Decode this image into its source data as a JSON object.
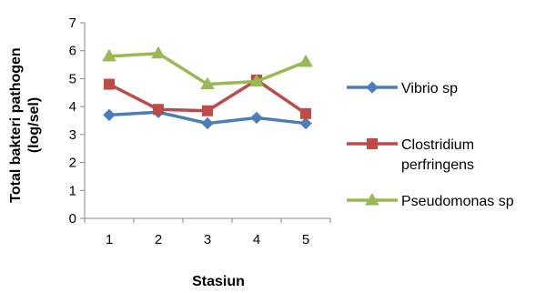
{
  "chart_data": {
    "type": "line",
    "x": [
      1,
      2,
      3,
      4,
      5
    ],
    "xlabel": "Stasiun",
    "ylabel": [
      "Total bakteri pathogen",
      "(log/sel)"
    ],
    "ylim": [
      0,
      7
    ],
    "yticks": [
      0,
      1,
      2,
      3,
      4,
      5,
      6,
      7
    ],
    "grid": false,
    "legend_position": "right",
    "series": [
      {
        "name": "Vibrio sp",
        "label_lines": [
          "Vibrio sp"
        ],
        "color": "#4a7ebb",
        "marker": "diamond",
        "values": [
          3.7,
          3.8,
          3.4,
          3.6,
          3.4
        ]
      },
      {
        "name": "Clostridium perfringens",
        "label_lines": [
          "Clostridium",
          "perfringens"
        ],
        "color": "#be4b48",
        "marker": "square",
        "values": [
          4.8,
          3.9,
          3.85,
          4.95,
          3.75
        ]
      },
      {
        "name": "Pseudomonas sp",
        "label_lines": [
          "Pseudomonas sp"
        ],
        "color": "#98b954",
        "marker": "triangle",
        "values": [
          5.8,
          5.9,
          4.8,
          4.9,
          5.6
        ]
      }
    ]
  }
}
